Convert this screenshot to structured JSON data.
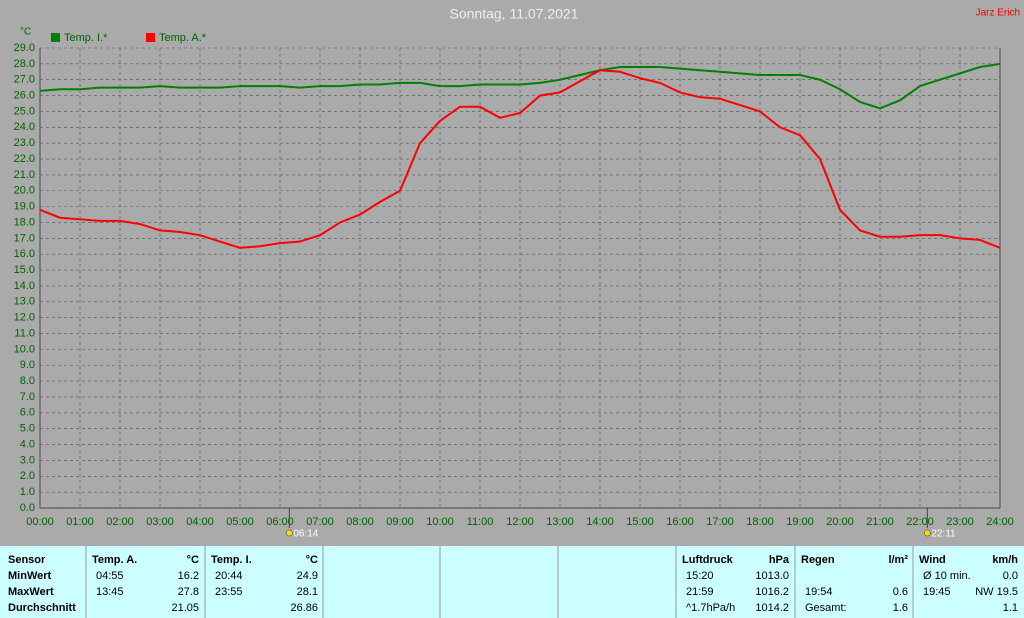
{
  "chart_data": {
    "type": "line",
    "title": "Sonntag, 11.07.2021",
    "author": "Jarz Erich",
    "y_label": "°C",
    "x": [
      0,
      0.5,
      1,
      1.5,
      2,
      2.5,
      3,
      3.5,
      4,
      4.5,
      5,
      5.5,
      6,
      6.5,
      7,
      7.5,
      8,
      8.5,
      9,
      9.5,
      10,
      10.5,
      11,
      11.5,
      12,
      12.5,
      13,
      13.5,
      14,
      14.5,
      15,
      15.5,
      16,
      16.5,
      17,
      17.5,
      18,
      18.5,
      19,
      19.5,
      20,
      20.5,
      21,
      21.5,
      22,
      22.5,
      23,
      23.5,
      24
    ],
    "series": [
      {
        "name": "Temp. I.*",
        "color": "#008000",
        "values": [
          26.3,
          26.4,
          26.4,
          26.5,
          26.5,
          26.5,
          26.6,
          26.5,
          26.5,
          26.5,
          26.6,
          26.6,
          26.6,
          26.5,
          26.6,
          26.6,
          26.7,
          26.7,
          26.8,
          26.8,
          26.6,
          26.6,
          26.7,
          26.7,
          26.7,
          26.8,
          27.0,
          27.3,
          27.6,
          27.8,
          27.8,
          27.8,
          27.7,
          27.6,
          27.5,
          27.4,
          27.3,
          27.3,
          27.3,
          27.0,
          26.4,
          25.6,
          25.2,
          25.7,
          26.6,
          27.0,
          27.4,
          27.8,
          28.0
        ]
      },
      {
        "name": "Temp. A.*",
        "color": "#ff0000",
        "values": [
          18.8,
          18.3,
          18.2,
          18.1,
          18.1,
          17.9,
          17.5,
          17.4,
          17.2,
          16.8,
          16.4,
          16.5,
          16.7,
          16.8,
          17.2,
          18.0,
          18.5,
          19.3,
          20.0,
          23.0,
          24.4,
          25.3,
          25.3,
          24.6,
          24.9,
          26.0,
          26.2,
          26.9,
          27.6,
          27.5,
          27.1,
          26.8,
          26.2,
          25.9,
          25.8,
          25.4,
          25.0,
          24.0,
          23.5,
          22.0,
          18.8,
          17.5,
          17.1,
          17.1,
          17.2,
          17.2,
          17.0,
          16.9,
          16.4
        ]
      }
    ],
    "xlim": [
      0,
      24
    ],
    "xticks": [
      {
        "value": 0,
        "label": "00:00"
      },
      {
        "value": 1,
        "label": "01:00"
      },
      {
        "value": 2,
        "label": "02:00"
      },
      {
        "value": 3,
        "label": "03:00"
      },
      {
        "value": 4,
        "label": "04:00"
      },
      {
        "value": 5,
        "label": "05:00"
      },
      {
        "value": 6,
        "label": "06:00"
      },
      {
        "value": 7,
        "label": "07:00"
      },
      {
        "value": 8,
        "label": "08:00"
      },
      {
        "value": 9,
        "label": "09:00"
      },
      {
        "value": 10,
        "label": "10:00"
      },
      {
        "value": 11,
        "label": "11:00"
      },
      {
        "value": 12,
        "label": "12:00"
      },
      {
        "value": 13,
        "label": "13:00"
      },
      {
        "value": 14,
        "label": "14:00"
      },
      {
        "value": 15,
        "label": "15:00"
      },
      {
        "value": 16,
        "label": "16:00"
      },
      {
        "value": 17,
        "label": "17:00"
      },
      {
        "value": 18,
        "label": "18:00"
      },
      {
        "value": 19,
        "label": "19:00"
      },
      {
        "value": 20,
        "label": "20:00"
      },
      {
        "value": 21,
        "label": "21:00"
      },
      {
        "value": 22,
        "label": "22:00"
      },
      {
        "value": 23,
        "label": "23:00"
      },
      {
        "value": 24,
        "label": "24:00"
      }
    ],
    "ylim": [
      0,
      29
    ],
    "yticks": [
      {
        "value": 0,
        "label": "0.0"
      },
      {
        "value": 1,
        "label": "1.0"
      },
      {
        "value": 2,
        "label": "2.0"
      },
      {
        "value": 3,
        "label": "3.0"
      },
      {
        "value": 4,
        "label": "4.0"
      },
      {
        "value": 5,
        "label": "5.0"
      },
      {
        "value": 6,
        "label": "6.0"
      },
      {
        "value": 7,
        "label": "7.0"
      },
      {
        "value": 8,
        "label": "8.0"
      },
      {
        "value": 9,
        "label": "9.0"
      },
      {
        "value": 10,
        "label": "10.0"
      },
      {
        "value": 11,
        "label": "11.0"
      },
      {
        "value": 12,
        "label": "12.0"
      },
      {
        "value": 13,
        "label": "13.0"
      },
      {
        "value": 14,
        "label": "14.0"
      },
      {
        "value": 15,
        "label": "15.0"
      },
      {
        "value": 16,
        "label": "16.0"
      },
      {
        "value": 17,
        "label": "17.0"
      },
      {
        "value": 18,
        "label": "18.0"
      },
      {
        "value": 19,
        "label": "19.0"
      },
      {
        "value": 20,
        "label": "20.0"
      },
      {
        "value": 21,
        "label": "21.0"
      },
      {
        "value": 22,
        "label": "22.0"
      },
      {
        "value": 23,
        "label": "23.0"
      },
      {
        "value": 24,
        "label": "24.0"
      },
      {
        "value": 25,
        "label": "25.0"
      },
      {
        "value": 26,
        "label": "26.0"
      },
      {
        "value": 27,
        "label": "27.0"
      },
      {
        "value": 28,
        "label": "28.0"
      },
      {
        "value": 29,
        "label": "29.0"
      }
    ],
    "grid": true,
    "annotations": [
      {
        "x": 6.233,
        "label": "06:14"
      },
      {
        "x": 22.183,
        "label": "22:11"
      }
    ]
  },
  "stats_table": {
    "label_column": [
      "Sensor",
      "MinWert",
      "MaxWert",
      "Durchschnitt"
    ],
    "groups": [
      {
        "title": "Temp. A.",
        "unit": "°C",
        "rows": [
          [
            "04:55",
            "16.2"
          ],
          [
            "13:45",
            "27.8"
          ],
          [
            null,
            "21.05"
          ]
        ]
      },
      {
        "title": "Temp. I.",
        "unit": "°C",
        "rows": [
          [
            "20:44",
            "24.9"
          ],
          [
            "23:55",
            "28.1"
          ],
          [
            null,
            "26.86"
          ]
        ]
      },
      {
        "title": "Luftdruck",
        "unit": "hPa",
        "rows": [
          [
            "15:20",
            "1013.0"
          ],
          [
            "21:59",
            "1016.2"
          ],
          [
            "^1.7hPa/h",
            "1014.2"
          ]
        ]
      },
      {
        "title": "Regen",
        "unit": "l/m²",
        "rows": [
          [
            null,
            null
          ],
          [
            "19:54",
            "0.6"
          ],
          [
            "Gesamt:",
            "1.6"
          ]
        ]
      },
      {
        "title": "Wind",
        "unit": "km/h",
        "rows": [
          [
            "Ø 10 min.",
            "0.0"
          ],
          [
            "19:45",
            "NW 19.5"
          ],
          [
            null,
            "1.1"
          ]
        ]
      }
    ]
  }
}
